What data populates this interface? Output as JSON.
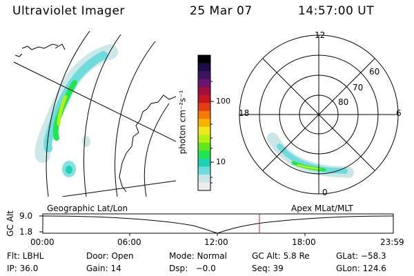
{
  "header": {
    "title": "Ultraviolet Imager",
    "date": "25 Mar 07",
    "time": "14:57:00 UT"
  },
  "colorbar": {
    "label": "photon cm⁻²s⁻¹",
    "ticks": [
      "100",
      "10"
    ],
    "colors": [
      "#000000",
      "#1e0a46",
      "#3c1464",
      "#6e1470",
      "#a0103c",
      "#c8141e",
      "#e63c14",
      "#f5780a",
      "#fab400",
      "#f0e61e",
      "#b4f014",
      "#64e61e",
      "#1ee650",
      "#1ed2b4",
      "#6edcdc",
      "#c8e6e6",
      "#ececec"
    ]
  },
  "polar": {
    "mlt_labels": {
      "top": "12",
      "left": "18",
      "right": "6",
      "bottom": "0"
    },
    "lat_labels": [
      "60",
      "70",
      "80"
    ]
  },
  "altitude_plot": {
    "axis_label": "GC Alt",
    "y_ticks": [
      "9.0",
      "1.8"
    ],
    "left_title": "Geographic Lat/Lon",
    "right_title": "Apex MLat/MLT",
    "x_ticks": [
      "00:00",
      "06:00",
      "12:00",
      "18:00",
      "23:59"
    ],
    "marker_color": "#d21e1e"
  },
  "info": {
    "flt": "Flt: LBHL",
    "door": "Door: Open",
    "mode": "Mode: Normal",
    "gc_alt": "GC Alt: 5.8 Re",
    "glat": "GLat: −58.3",
    "ip": "IP: 36.0",
    "gain": "Gain: 14",
    "dsp": "Dsp:   −0.0",
    "seq": "Seq: 39",
    "glon": "GLon: 124.6"
  }
}
